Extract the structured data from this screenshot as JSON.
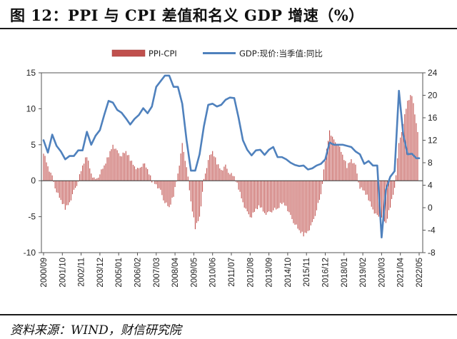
{
  "header": {
    "title": "图 12：PPI 与 CPI 差值和名义 GDP 增速（%）"
  },
  "footer": {
    "source": "资料来源：WIND，财信研究院"
  },
  "colors": {
    "bar": "#c0504d",
    "line": "#4f81bd"
  },
  "chart_data": {
    "type": "bar",
    "x_tick_labels": [
      "2000/09",
      "2001/10",
      "2002/11",
      "2003/12",
      "2005/01",
      "2006/02",
      "2007/03",
      "2008/04",
      "2009/05",
      "2010/06",
      "2011/07",
      "2012/08",
      "2013/09",
      "2014/10",
      "2015/11",
      "2016/12",
      "2018/01",
      "2019/02",
      "2020/03",
      "2021/04",
      "2022/05"
    ],
    "y_left": {
      "ticks": [
        15,
        10,
        5,
        0,
        -5,
        -10
      ],
      "lim": [
        -10,
        15
      ]
    },
    "y_right": {
      "ticks": [
        24,
        20,
        16,
        12,
        8,
        4,
        0,
        -4,
        -8
      ],
      "lim": [
        -8,
        24
      ]
    },
    "legend": {
      "position": "top-center"
    },
    "series": [
      {
        "name": "PPI-CPI",
        "type": "bar",
        "axis": "left",
        "points": [
          [
            "2000/09",
            4
          ],
          [
            "2000/12",
            2
          ],
          [
            "2001/03",
            0.5
          ],
          [
            "2001/06",
            -1.5
          ],
          [
            "2001/09",
            -2.8
          ],
          [
            "2001/12",
            -3.8
          ],
          [
            "2002/03",
            -3
          ],
          [
            "2002/06",
            -1.5
          ],
          [
            "2002/09",
            0
          ],
          [
            "2002/12",
            2
          ],
          [
            "2003/03",
            3.5
          ],
          [
            "2003/06",
            1
          ],
          [
            "2003/09",
            0
          ],
          [
            "2003/12",
            1
          ],
          [
            "2004/03",
            2
          ],
          [
            "2004/06",
            3.5
          ],
          [
            "2004/09",
            5
          ],
          [
            "2004/12",
            4
          ],
          [
            "2005/03",
            3.5
          ],
          [
            "2005/06",
            4
          ],
          [
            "2005/09",
            3
          ],
          [
            "2005/12",
            2
          ],
          [
            "2006/03",
            1.5
          ],
          [
            "2006/06",
            2.5
          ],
          [
            "2006/09",
            1.5
          ],
          [
            "2006/12",
            0
          ],
          [
            "2007/03",
            -0.5
          ],
          [
            "2007/06",
            -1.5
          ],
          [
            "2007/09",
            -3
          ],
          [
            "2007/12",
            -3.8
          ],
          [
            "2008/03",
            -2
          ],
          [
            "2008/06",
            1
          ],
          [
            "2008/09",
            5
          ],
          [
            "2008/12",
            2
          ],
          [
            "2009/03",
            -3
          ],
          [
            "2009/06",
            -6.5
          ],
          [
            "2009/09",
            -5
          ],
          [
            "2009/12",
            0
          ],
          [
            "2010/03",
            3
          ],
          [
            "2010/06",
            4
          ],
          [
            "2010/09",
            2.5
          ],
          [
            "2010/12",
            1.5
          ],
          [
            "2011/03",
            2
          ],
          [
            "2011/06",
            1
          ],
          [
            "2011/09",
            0.5
          ],
          [
            "2011/12",
            -1
          ],
          [
            "2012/03",
            -3
          ],
          [
            "2012/06",
            -4.5
          ],
          [
            "2012/09",
            -5
          ],
          [
            "2012/12",
            -4
          ],
          [
            "2013/03",
            -3.5
          ],
          [
            "2013/06",
            -4.5
          ],
          [
            "2013/09",
            -4.5
          ],
          [
            "2013/12",
            -4
          ],
          [
            "2014/03",
            -4
          ],
          [
            "2014/06",
            -3
          ],
          [
            "2014/09",
            -3.5
          ],
          [
            "2014/12",
            -5
          ],
          [
            "2015/03",
            -6
          ],
          [
            "2015/06",
            -7
          ],
          [
            "2015/09",
            -7.5
          ],
          [
            "2015/12",
            -7
          ],
          [
            "2016/03",
            -6
          ],
          [
            "2016/06",
            -4
          ],
          [
            "2016/09",
            -2
          ],
          [
            "2016/12",
            3
          ],
          [
            "2017/03",
            7
          ],
          [
            "2017/06",
            5.5
          ],
          [
            "2017/09",
            5
          ],
          [
            "2017/12",
            3.5
          ],
          [
            "2018/03",
            2
          ],
          [
            "2018/06",
            3
          ],
          [
            "2018/09",
            2
          ],
          [
            "2018/12",
            -1
          ],
          [
            "2019/03",
            -1.5
          ],
          [
            "2019/06",
            -2.5
          ],
          [
            "2019/09",
            -4
          ],
          [
            "2019/12",
            -5
          ],
          [
            "2020/03",
            -5
          ],
          [
            "2020/06",
            -6
          ],
          [
            "2020/09",
            -3.5
          ],
          [
            "2020/12",
            -1
          ],
          [
            "2021/03",
            5
          ],
          [
            "2021/06",
            8
          ],
          [
            "2021/09",
            11
          ],
          [
            "2021/12",
            12
          ],
          [
            "2022/03",
            8
          ],
          [
            "2022/05",
            6
          ]
        ]
      },
      {
        "name": "GDP:现价:当季值:同比",
        "type": "line",
        "axis": "right",
        "points": [
          [
            "2000/09",
            12
          ],
          [
            "2000/12",
            9.8
          ],
          [
            "2001/03",
            13
          ],
          [
            "2001/06",
            11
          ],
          [
            "2001/09",
            10
          ],
          [
            "2001/12",
            8.6
          ],
          [
            "2002/03",
            9.2
          ],
          [
            "2002/06",
            9.2
          ],
          [
            "2002/09",
            10.2
          ],
          [
            "2002/12",
            10.2
          ],
          [
            "2003/03",
            13.5
          ],
          [
            "2003/06",
            11.2
          ],
          [
            "2003/09",
            12.8
          ],
          [
            "2003/12",
            13.8
          ],
          [
            "2004/03",
            16.5
          ],
          [
            "2004/06",
            19
          ],
          [
            "2004/09",
            18.7
          ],
          [
            "2004/12",
            17.4
          ],
          [
            "2005/03",
            16.9
          ],
          [
            "2005/06",
            15.9
          ],
          [
            "2005/09",
            14.8
          ],
          [
            "2005/12",
            15.8
          ],
          [
            "2006/03",
            16.5
          ],
          [
            "2006/06",
            17.7
          ],
          [
            "2006/09",
            16.8
          ],
          [
            "2006/12",
            18
          ],
          [
            "2007/03",
            21.5
          ],
          [
            "2007/06",
            22.5
          ],
          [
            "2007/09",
            23.5
          ],
          [
            "2007/12",
            23.5
          ],
          [
            "2008/03",
            21.5
          ],
          [
            "2008/06",
            21.5
          ],
          [
            "2008/09",
            18.5
          ],
          [
            "2008/12",
            12
          ],
          [
            "2009/03",
            6.6
          ],
          [
            "2009/06",
            6.6
          ],
          [
            "2009/09",
            9.5
          ],
          [
            "2009/12",
            14.5
          ],
          [
            "2010/03",
            18.3
          ],
          [
            "2010/06",
            18.5
          ],
          [
            "2010/09",
            18
          ],
          [
            "2010/12",
            18.3
          ],
          [
            "2011/03",
            19.2
          ],
          [
            "2011/06",
            19.6
          ],
          [
            "2011/09",
            19.5
          ],
          [
            "2011/12",
            16
          ],
          [
            "2012/03",
            12
          ],
          [
            "2012/06",
            10.3
          ],
          [
            "2012/09",
            9.3
          ],
          [
            "2012/12",
            10.2
          ],
          [
            "2013/03",
            10.3
          ],
          [
            "2013/06",
            9.4
          ],
          [
            "2013/09",
            10.3
          ],
          [
            "2013/12",
            10.8
          ],
          [
            "2014/03",
            9
          ],
          [
            "2014/06",
            9
          ],
          [
            "2014/09",
            8.6
          ],
          [
            "2014/12",
            8
          ],
          [
            "2015/03",
            7.6
          ],
          [
            "2015/06",
            7.4
          ],
          [
            "2015/09",
            7.5
          ],
          [
            "2015/12",
            6.8
          ],
          [
            "2016/03",
            7
          ],
          [
            "2016/06",
            7.5
          ],
          [
            "2016/09",
            7.8
          ],
          [
            "2016/12",
            8.6
          ],
          [
            "2017/03",
            11.6
          ],
          [
            "2017/06",
            11.2
          ],
          [
            "2017/09",
            11.2
          ],
          [
            "2017/12",
            11.2
          ],
          [
            "2018/03",
            11
          ],
          [
            "2018/06",
            10.8
          ],
          [
            "2018/09",
            10
          ],
          [
            "2018/12",
            9.5
          ],
          [
            "2019/03",
            7.8
          ],
          [
            "2019/06",
            8.3
          ],
          [
            "2019/09",
            7.5
          ],
          [
            "2019/12",
            7.5
          ],
          [
            "2020/03",
            -5.3
          ],
          [
            "2020/06",
            3.2
          ],
          [
            "2020/09",
            5.5
          ],
          [
            "2020/12",
            6.5
          ],
          [
            "2021/03",
            20.8
          ],
          [
            "2021/06",
            13
          ],
          [
            "2021/09",
            9.5
          ],
          [
            "2021/12",
            9.6
          ],
          [
            "2022/03",
            8.8
          ],
          [
            "2022/05",
            8.8
          ]
        ]
      }
    ]
  }
}
